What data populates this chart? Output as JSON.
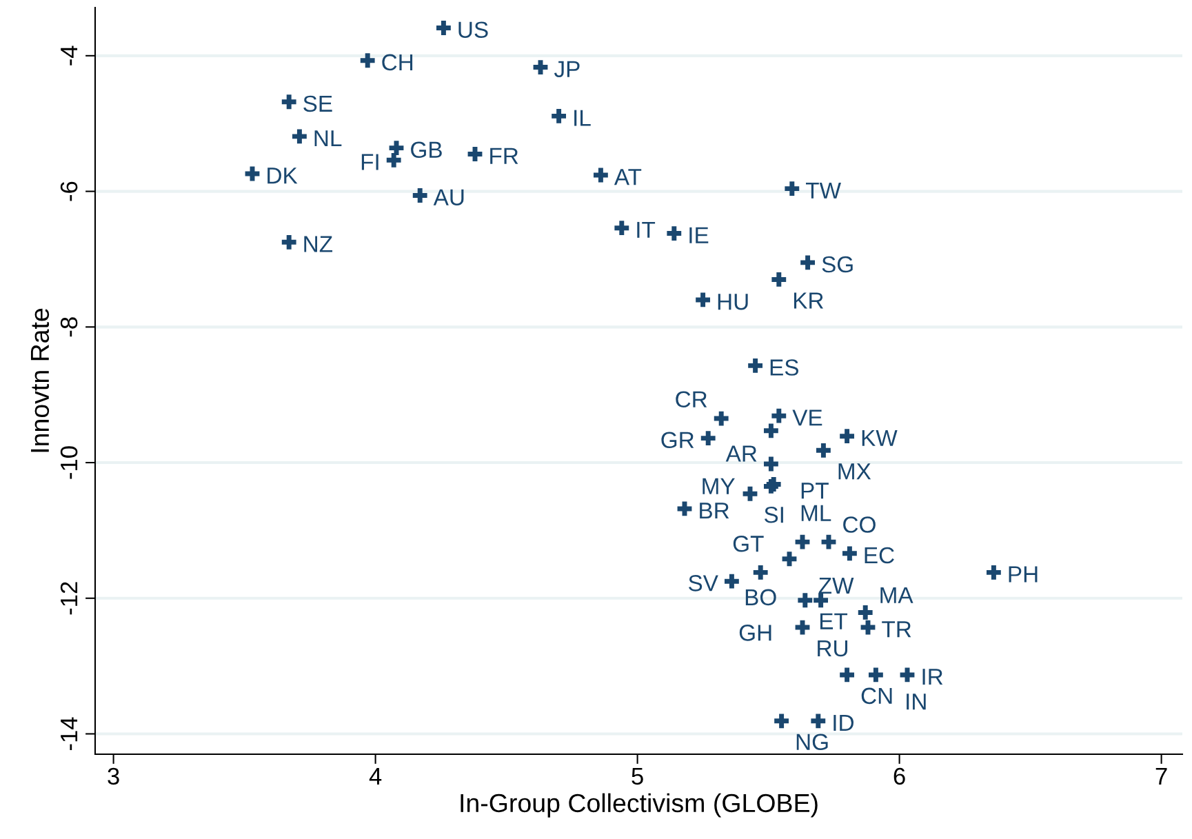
{
  "chart_data": {
    "type": "scatter",
    "xlabel": "In-Group Collectivism (GLOBE)",
    "ylabel": "Innovtn Rate",
    "xlim": [
      2.93,
      7.08
    ],
    "ylim": [
      -14.3,
      -3.29
    ],
    "xticks": [
      3,
      4,
      5,
      6,
      7
    ],
    "yticks": [
      {
        "value": -4,
        "label": "-4"
      },
      {
        "value": -6,
        "label": "-6"
      },
      {
        "value": -8,
        "label": "-8"
      },
      {
        "value": -10,
        "label": "-10"
      },
      {
        "value": -12,
        "label": "-12"
      },
      {
        "value": -14,
        "label": "-14"
      }
    ],
    "grid": "y",
    "marker": "cross",
    "series": [
      {
        "color": "#1a476f",
        "x": [
          4.26,
          3.97,
          4.63,
          3.67,
          4.7,
          3.71,
          4.08,
          4.07,
          4.38,
          3.53,
          4.86,
          5.59,
          4.17,
          4.94,
          5.14,
          3.67,
          5.65,
          5.54,
          5.25,
          5.45,
          5.32,
          5.54,
          5.51,
          5.27,
          5.8,
          5.71,
          5.51,
          5.52,
          5.51,
          5.43,
          5.18,
          5.63,
          5.73,
          5.81,
          5.58,
          5.47,
          5.36,
          6.36,
          5.64,
          5.7,
          5.87,
          5.63,
          5.88,
          5.8,
          5.91,
          6.03,
          5.55,
          5.69
        ],
        "values": [
          -3.59,
          -4.07,
          -4.17,
          -4.68,
          -4.89,
          -5.19,
          -5.36,
          -5.54,
          -5.45,
          -5.74,
          -5.76,
          -5.96,
          -6.06,
          -6.54,
          -6.62,
          -6.75,
          -7.05,
          -7.3,
          -7.6,
          -8.57,
          -9.35,
          -9.31,
          -9.53,
          -9.64,
          -9.61,
          -9.82,
          -10.02,
          -10.32,
          -10.35,
          -10.46,
          -10.68,
          -11.17,
          -11.17,
          -11.34,
          -11.42,
          -11.62,
          -11.75,
          -11.62,
          -12.03,
          -12.03,
          -12.21,
          -12.43,
          -12.43,
          -13.13,
          -13.13,
          -13.13,
          -13.81,
          -13.81
        ],
        "value_labels": [
          "US",
          "CH",
          "JP",
          "SE",
          "IL",
          "NL",
          "GB",
          "FI",
          "FR",
          "DK",
          "AT",
          "TW",
          "AU",
          "IT",
          "IE",
          "NZ",
          "SG",
          "KR",
          "HU",
          "ES",
          "CR",
          "VE",
          "AR",
          "GR",
          "KW",
          "MX",
          "PT",
          "MY",
          "ML",
          "SI",
          "BR",
          "GT",
          "CO",
          "EC",
          "ZW",
          "BO",
          "SV",
          "PH",
          "ET",
          "GH",
          "MA",
          "RU",
          "TR",
          "CN",
          "IN",
          "IR",
          "NG",
          "ID"
        ]
      }
    ]
  }
}
